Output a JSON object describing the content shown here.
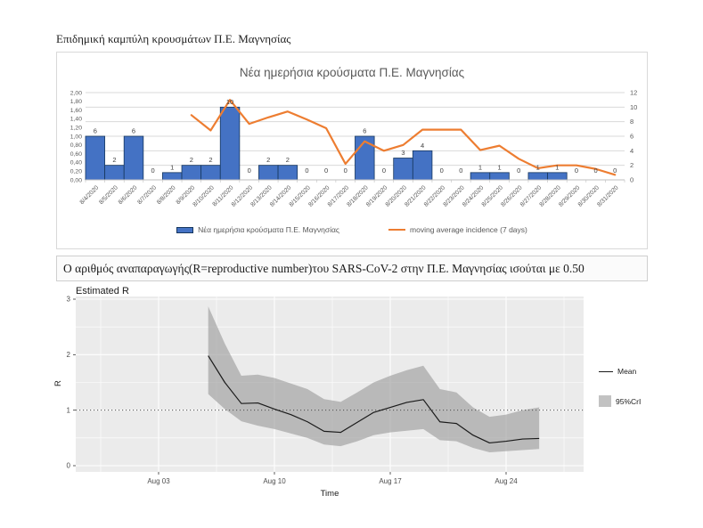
{
  "page": {
    "title": "Επιδημική καμπύλη κρουσμάτων Π.Ε. Μαγνησίας"
  },
  "r_statement": {
    "text": "Ο αριθμός αναπαραγωγής(R=reproductive number)του SARS-CoV-2 στην Π.Ε. Μαγνησίας ισούται με 0.50"
  },
  "chart_data": [
    {
      "type": "bar",
      "title": "Νέα ημερήσια κρούσματα Π.Ε. Μαγνησίας",
      "categories": [
        "8/4/2020",
        "8/5/2020",
        "8/6/2020",
        "8/7/2020",
        "8/8/2020",
        "8/9/2020",
        "8/10/2020",
        "8/11/2020",
        "8/12/2020",
        "8/13/2020",
        "8/14/2020",
        "8/15/2020",
        "8/16/2020",
        "8/17/2020",
        "8/18/2020",
        "8/19/2020",
        "8/20/2020",
        "8/21/2020",
        "8/22/2020",
        "8/23/2020",
        "8/24/2020",
        "8/25/2020",
        "8/26/2020",
        "8/27/2020",
        "8/28/2020",
        "8/29/2020",
        "8/30/2020",
        "8/31/2020"
      ],
      "series": [
        {
          "name": "Νέα ημερήσια κρούσματα Π.Ε. Μαγνησίας",
          "type": "bar",
          "color": "#4472C4",
          "border_color": "#17375e",
          "values": [
            6,
            2,
            6,
            0,
            1,
            2,
            2,
            10,
            0,
            2,
            2,
            0,
            0,
            0,
            6,
            0,
            3,
            4,
            0,
            0,
            1,
            1,
            0,
            1,
            1,
            0,
            0,
            0
          ]
        },
        {
          "name": "moving average incidence (7 days)",
          "type": "line",
          "color": "#ED7D31",
          "values": [
            null,
            null,
            null,
            null,
            null,
            8.9,
            6.8,
            11,
            7.7,
            8.6,
            9.4,
            8.3,
            7.1,
            2.2,
            5.3,
            4,
            4.8,
            6.9,
            6.9,
            6.9,
            4.1,
            4.7,
            2.9,
            1.6,
            2,
            2,
            1.5,
            0.7
          ]
        }
      ],
      "left_axis": {
        "min": 0,
        "max": 2,
        "ticks": [
          "2,00",
          "1,80",
          "1,60",
          "1,40",
          "1,20",
          "1,00",
          "0,80",
          "0,60",
          "0,40",
          "0,20",
          "0,00"
        ]
      },
      "right_axis": {
        "min": 0,
        "max": 12,
        "ticks": [
          "12",
          "10",
          "8",
          "6",
          "4",
          "2",
          "0"
        ]
      },
      "grid": true,
      "legend_position": "bottom",
      "grid_color": "#d9d9d9",
      "axis_color": "#bfbfbf",
      "label_color": "#404040",
      "tick_color": "#595959"
    },
    {
      "type": "area",
      "title": "Estimated R",
      "xlabel": "Time",
      "ylabel": "R",
      "ylim": [
        0,
        3
      ],
      "y_ticks": [
        0,
        1,
        2,
        3
      ],
      "y_minor_ticks": [
        0.5,
        1.5,
        2.5
      ],
      "x_ticks": [
        {
          "label": "Aug 03",
          "day": 3
        },
        {
          "label": "Aug 10",
          "day": 10
        },
        {
          "label": "Aug 17",
          "day": 17
        },
        {
          "label": "Aug 24",
          "day": 24
        }
      ],
      "x_minor_days": [
        -0.5,
        6.5,
        13.5,
        20.5,
        27.5
      ],
      "reference_line_y": 1,
      "legend": [
        {
          "label": "Mean",
          "type": "line"
        },
        {
          "label": "95%CrI",
          "type": "area"
        }
      ],
      "legend_position": "right",
      "grid": true,
      "days": [
        6,
        7,
        8,
        9,
        10,
        11,
        12,
        13,
        14,
        15,
        16,
        17,
        18,
        19,
        20,
        21,
        22,
        23,
        24,
        25,
        26
      ],
      "series": [
        {
          "name": "Mean",
          "values": [
            1.98,
            1.5,
            1.12,
            1.13,
            1.02,
            0.92,
            0.79,
            0.62,
            0.6,
            0.78,
            0.96,
            1.05,
            1.14,
            1.19,
            0.79,
            0.76,
            0.55,
            0.41,
            0.44,
            0.48,
            0.49
          ]
        },
        {
          "name": "95%CrI upper",
          "values": [
            2.87,
            2.2,
            1.62,
            1.64,
            1.58,
            1.48,
            1.38,
            1.2,
            1.15,
            1.32,
            1.5,
            1.62,
            1.72,
            1.8,
            1.38,
            1.32,
            1.05,
            0.88,
            0.92,
            1.0,
            1.05
          ]
        },
        {
          "name": "95%CrI lower",
          "values": [
            1.29,
            1.02,
            0.8,
            0.72,
            0.66,
            0.58,
            0.5,
            0.38,
            0.35,
            0.44,
            0.55,
            0.6,
            0.63,
            0.66,
            0.46,
            0.44,
            0.32,
            0.24,
            0.26,
            0.28,
            0.3
          ]
        }
      ],
      "colors": {
        "mean": "#1a1a1a",
        "ribbon": "#9e9e9e",
        "panel": "#ebebeb",
        "grid": "#ffffff",
        "tick_text": "#4d4d4d"
      }
    }
  ]
}
